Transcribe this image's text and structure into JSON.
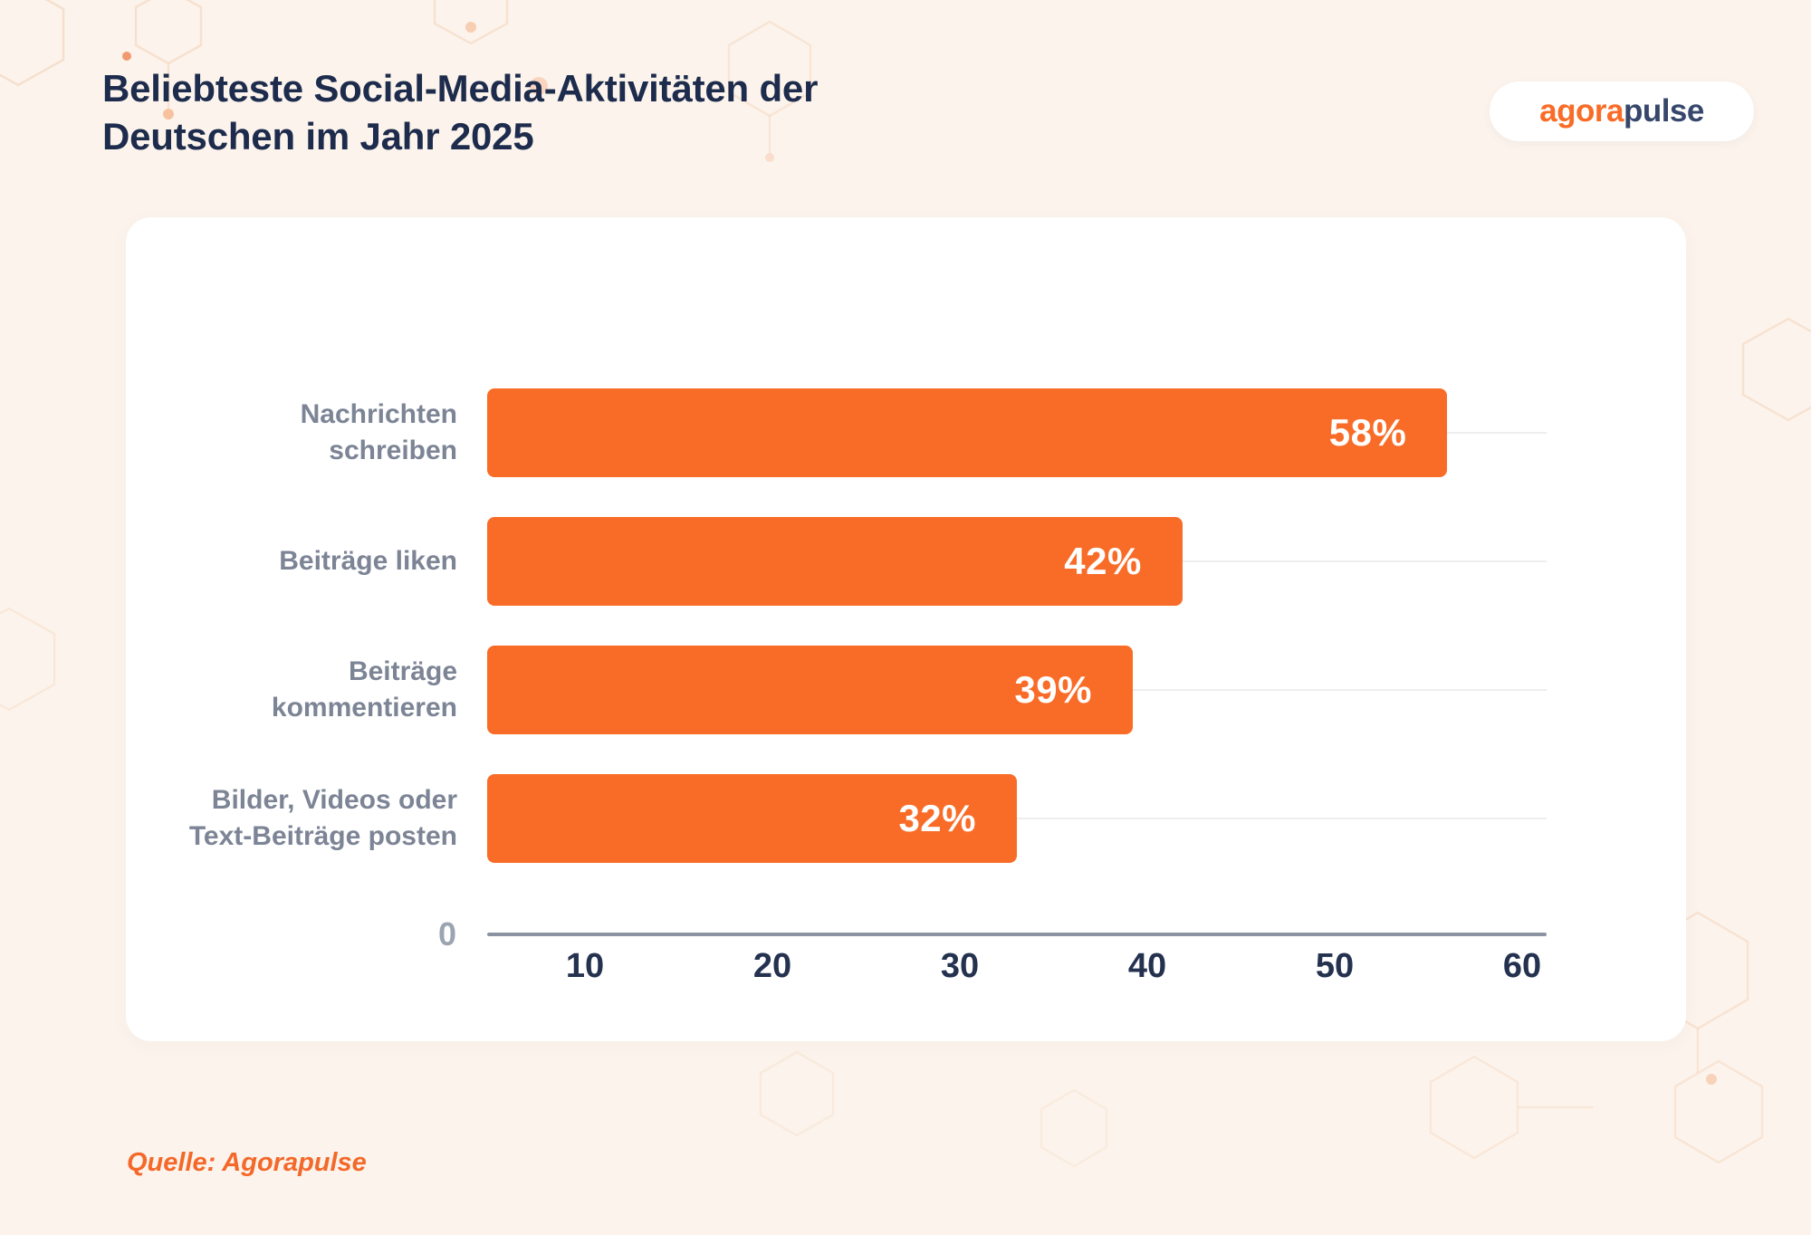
{
  "header": {
    "title": "Beliebteste Social-Media-Aktivitäten der Deutschen im Jahr 2025",
    "logo": {
      "part1": "agora",
      "part2": "pulse"
    }
  },
  "footer": {
    "source": "Quelle: Agorapulse"
  },
  "colors": {
    "background": "#FCF4EC",
    "card": "#FFFFFF",
    "bar_orange": "#F96C28",
    "title_navy": "#1D2B4C",
    "category_label_gray": "#7C8495",
    "tick_navy": "#24324F",
    "axis_line_gray": "#8B93A3",
    "zero_gray": "#9CA4B2",
    "gridline_gray": "#EEEEF0",
    "source_orange": "#F4682A",
    "logo_navy": "#36476B"
  },
  "chart_data": {
    "type": "bar",
    "orientation": "horizontal",
    "title": "Beliebteste Social-Media-Aktivitäten der Deutschen im Jahr 2025",
    "categories": [
      "Nachrichten schreiben",
      "Beiträge liken",
      "Beiträge kommentieren",
      "Bilder, Videos oder Text-Beiträge posten"
    ],
    "category_lines": [
      [
        "Nachrichten",
        "schreiben"
      ],
      [
        "Beiträge liken"
      ],
      [
        "Beiträge",
        "kommentieren"
      ],
      [
        "Bilder, Videos oder",
        "Text-Beiträge posten"
      ]
    ],
    "values": [
      58,
      42,
      39,
      32
    ],
    "value_labels": [
      "58%",
      "42%",
      "39%",
      "32%"
    ],
    "unit": "%",
    "xlim": [
      0,
      60
    ],
    "x_ticks": [
      "10",
      "20",
      "30",
      "40",
      "50",
      "60"
    ],
    "zero_label": "0",
    "grid": "horizontal-lines-at-row-centers",
    "legend": "none",
    "bar_color": "#F96C28",
    "source": "Quelle: Agorapulse"
  }
}
